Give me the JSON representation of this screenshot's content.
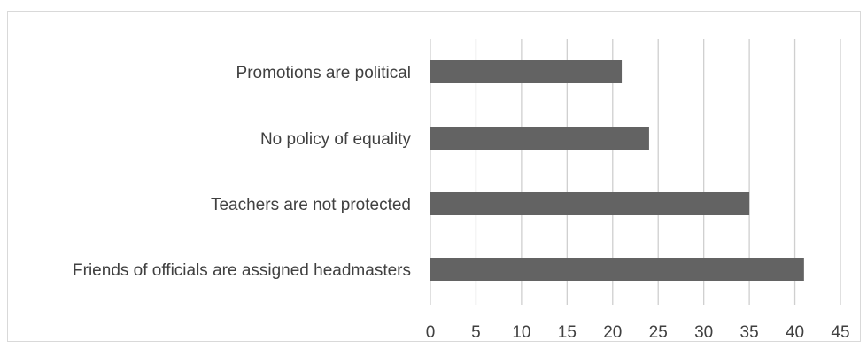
{
  "chart_data": {
    "type": "bar",
    "orientation": "horizontal",
    "categories": [
      "Promotions are political",
      "No policy of equality",
      "Teachers are not protected",
      "Friends of officials are assigned headmasters"
    ],
    "values": [
      21,
      24,
      35,
      41
    ],
    "xlim": [
      0,
      45
    ],
    "xticks": [
      "0",
      "5",
      "10",
      "15",
      "20",
      "25",
      "30",
      "35",
      "40",
      "45"
    ],
    "title": "",
    "xlabel": "",
    "ylabel": "",
    "grid": "vertical",
    "bar_color": "#636363",
    "grid_color": "#cfcfcf",
    "text_color": "#404040",
    "legend": "none"
  }
}
